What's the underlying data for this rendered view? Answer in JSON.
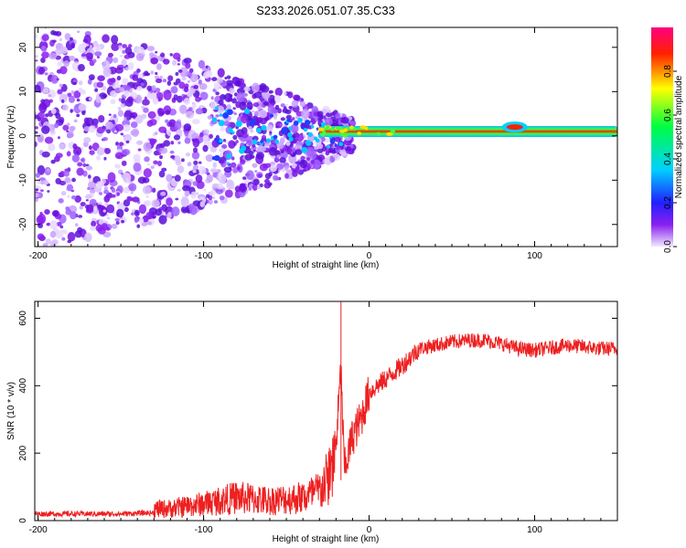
{
  "title": "S233.2026.051.07.35.C33",
  "chart_data": [
    {
      "type": "heatmap",
      "title": "S233.2026.051.07.35.C33",
      "xlabel": "Height of straight line (km)",
      "ylabel": "Frequency (Hz)",
      "xlim": [
        -202,
        150
      ],
      "ylim": [
        -25,
        24.5
      ],
      "x_ticks": [
        -200,
        -100,
        0,
        100
      ],
      "x_tick_labels": [
        "-200",
        "-100",
        "0",
        "100"
      ],
      "y_ticks": [
        -20,
        -10,
        0,
        10,
        20
      ],
      "y_tick_labels": [
        "-20",
        "-10",
        "0",
        "10",
        "20"
      ],
      "colorbar": {
        "label": "Normalized spectral amplitude",
        "range": [
          0,
          1
        ],
        "ticks": [
          0.0,
          0.2,
          0.4,
          0.6,
          0.8
        ],
        "tick_labels": [
          "0.0",
          "0.2",
          "0.4",
          "0.6",
          "0.8"
        ],
        "colors": [
          "#f0e8ff",
          "#8a20f0",
          "#2020ff",
          "#00d0ff",
          "#00ff40",
          "#ffff00",
          "#ff2000",
          "#ff0080"
        ]
      },
      "features": {
        "carrier_line": {
          "frequency_hz": 1,
          "x_start_km": -30,
          "x_end_km": 150,
          "amplitude": 1.0
        },
        "carrier_blob": {
          "x_km": 88,
          "frequency_hz": 2,
          "amplitude": 1.0
        },
        "noise_region": {
          "x_start_km": -202,
          "x_end_km": -10,
          "freq_spread_hz": 25
        }
      }
    },
    {
      "type": "line",
      "xlabel": "Height of straight line (km)",
      "ylabel": "SNR (10 * v/v)",
      "xlim": [
        -202,
        150
      ],
      "ylim": [
        0,
        650
      ],
      "x_ticks": [
        -200,
        -100,
        0,
        100
      ],
      "x_tick_labels": [
        "-200",
        "-100",
        "0",
        "100"
      ],
      "y_ticks": [
        0,
        200,
        400,
        600
      ],
      "y_tick_labels": [
        "0",
        "200",
        "400",
        "600"
      ],
      "line_color": "#ee2020",
      "series": [
        {
          "x": [
            -202,
            -150,
            -120,
            -100,
            -80,
            -60,
            -40,
            -30,
            -25,
            -20,
            -17,
            -15,
            -10,
            -5,
            0,
            10,
            20,
            30,
            40,
            50,
            60,
            70,
            80,
            90,
            100,
            120,
            140,
            150
          ],
          "values": [
            20,
            20,
            25,
            40,
            60,
            50,
            60,
            80,
            120,
            220,
            450,
            150,
            250,
            300,
            380,
            420,
            460,
            510,
            520,
            530,
            535,
            535,
            525,
            510,
            505,
            520,
            510,
            510
          ]
        }
      ]
    }
  ]
}
